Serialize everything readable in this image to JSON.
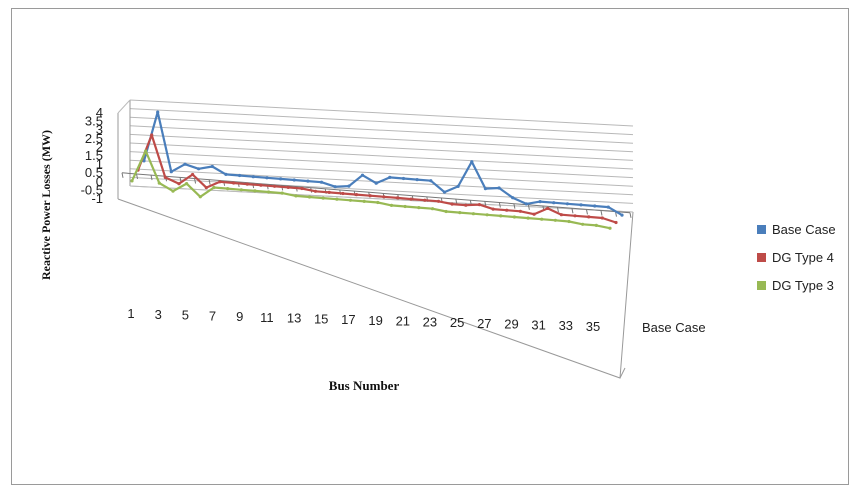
{
  "chart_data": {
    "type": "line",
    "title": "",
    "xlabel": "Bus Number",
    "ylabel": "Reactive Power Losses (MW)",
    "ylim": [
      -1,
      4
    ],
    "yticks": [
      "4",
      "3.5",
      "3",
      "2.5",
      "2",
      "1.5",
      "1",
      "0.5",
      "0",
      "-0.5",
      "-1"
    ],
    "xticks": [
      "1",
      "3",
      "5",
      "7",
      "9",
      "11",
      "13",
      "15",
      "17",
      "19",
      "21",
      "23",
      "25",
      "27",
      "29",
      "31",
      "33",
      "35"
    ],
    "depth_label": "Base Case",
    "grid": true,
    "legend_position": "right",
    "x": [
      1,
      2,
      3,
      4,
      5,
      6,
      7,
      8,
      9,
      10,
      11,
      12,
      13,
      14,
      15,
      16,
      17,
      18,
      19,
      20,
      21,
      22,
      23,
      24,
      25,
      26,
      27,
      28,
      29,
      30,
      31,
      32,
      33,
      34,
      35,
      36
    ],
    "series": [
      {
        "name": "Base Case",
        "color": "#4a7ebb",
        "values": [
          0.5,
          3.4,
          0.0,
          0.5,
          0.3,
          0.5,
          0.1,
          0.1,
          0.1,
          0.1,
          0.1,
          0.1,
          0.1,
          0.1,
          -0.1,
          0.0,
          0.7,
          0.3,
          0.7,
          0.7,
          0.7,
          0.7,
          0.1,
          0.5,
          2.0,
          0.5,
          0.6,
          0.1,
          -0.2,
          0.0,
          0.0,
          0.0,
          0.0,
          0.0,
          0.0,
          -0.4
        ]
      },
      {
        "name": "DG Type 4",
        "color": "#be4b48",
        "values": [
          0.3,
          2.4,
          0.0,
          -0.3,
          0.3,
          -0.4,
          0.0,
          0.0,
          0.0,
          0.0,
          0.0,
          0.0,
          0.0,
          -0.1,
          -0.1,
          -0.1,
          -0.1,
          -0.1,
          -0.1,
          -0.1,
          -0.1,
          -0.1,
          -0.1,
          -0.2,
          -0.2,
          -0.1,
          -0.3,
          -0.3,
          -0.3,
          -0.4,
          0.0,
          -0.3,
          -0.3,
          -0.3,
          -0.3,
          -0.5
        ]
      },
      {
        "name": "DG Type 3",
        "color": "#98b954",
        "values": [
          0.0,
          1.8,
          0.0,
          -0.4,
          0.1,
          -0.6,
          0.0,
          0.0,
          0.0,
          0.0,
          0.0,
          0.0,
          -0.1,
          -0.1,
          -0.1,
          -0.1,
          -0.1,
          -0.1,
          -0.1,
          -0.2,
          -0.2,
          -0.2,
          -0.2,
          -0.3,
          -0.3,
          -0.3,
          -0.3,
          -0.3,
          -0.3,
          -0.3,
          -0.3,
          -0.3,
          -0.3,
          -0.4,
          -0.4,
          -0.5
        ]
      }
    ]
  }
}
